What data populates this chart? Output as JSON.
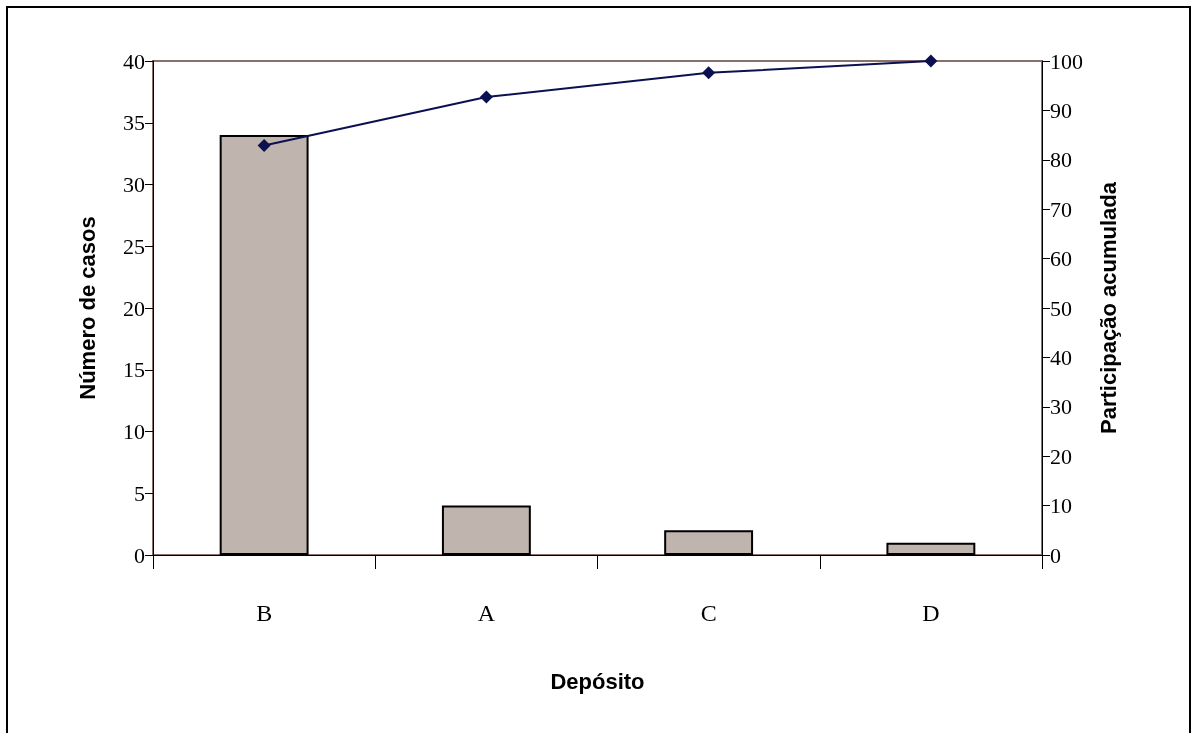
{
  "chart_data": {
    "type": "bar",
    "xlabel": "Depósito",
    "ylabel": "Número de casos",
    "y2label": "Participação acumulada",
    "categories": [
      "B",
      "A",
      "C",
      "D"
    ],
    "series": [
      {
        "color": "#c0b4ae",
        "values": [
          34,
          4,
          2,
          1
        ]
      },
      {
        "type": "line",
        "axis": "y2",
        "color": "#0b1050",
        "marker": "diamond",
        "line_style": "solid",
        "values": [
          82.9,
          92.7,
          97.6,
          100
        ]
      }
    ],
    "ylim": [
      0,
      40
    ],
    "yticks": [
      0,
      5,
      10,
      15,
      20,
      25,
      30,
      35,
      40
    ],
    "y2lim": [
      0,
      100
    ],
    "y2ticks": [
      0,
      10,
      20,
      30,
      40,
      50,
      60,
      70,
      80,
      90,
      100
    ],
    "grid": false
  }
}
